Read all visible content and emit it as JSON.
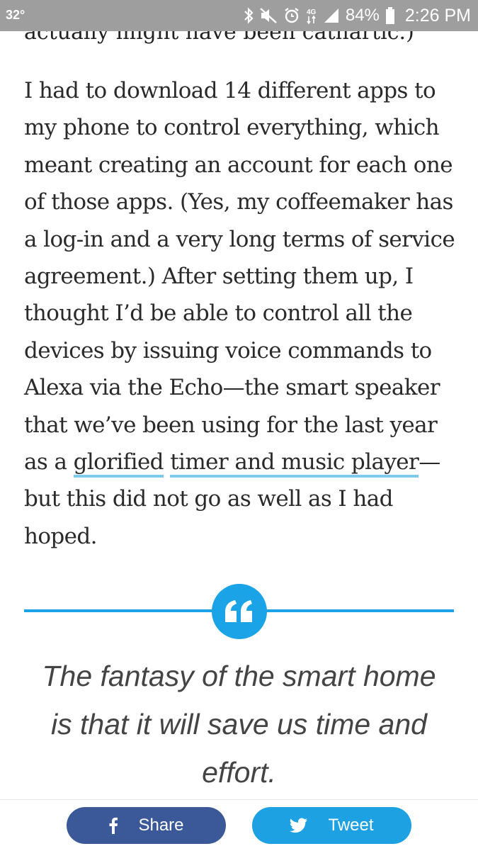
{
  "status_bar": {
    "temperature": "32°",
    "battery": "84%",
    "time": "2:26 PM",
    "icons": [
      "bluetooth-icon",
      "mute-vibrate-icon",
      "alarm-icon",
      "data-4g-icon",
      "signal-icon",
      "battery-icon"
    ]
  },
  "article": {
    "cutoff_line": "actually might have been cathartic.)",
    "paragraph_before": "I had to download 14 different apps to my phone to control everything, which meant creating an account for each one of those apps. (Yes, my coffeemaker has a log-in and a very long terms of service agreement.) After setting them up, I thought I’d be able to control all the devices by issuing voice commands to Alexa via the Echo—the smart speaker that we’ve been using for the last year as a ",
    "link_1": "glorified",
    "space": " ",
    "link_2": "timer and music player",
    "paragraph_after": "— but this did not go as well as I had hoped."
  },
  "pull_quote": {
    "icon": "quote-icon",
    "text": "The fantasy of the smart home is that it will save us time and effort."
  },
  "share_bar": {
    "share_label": "Share",
    "share_icon": "facebook-icon",
    "tweet_label": "Tweet",
    "tweet_icon": "twitter-icon"
  },
  "colors": {
    "accent": "#1aa3e6",
    "link_underline": "#7fcbef",
    "facebook": "#3b5998",
    "twitter": "#1da1e2",
    "status_bar": "#9e9e9e"
  }
}
